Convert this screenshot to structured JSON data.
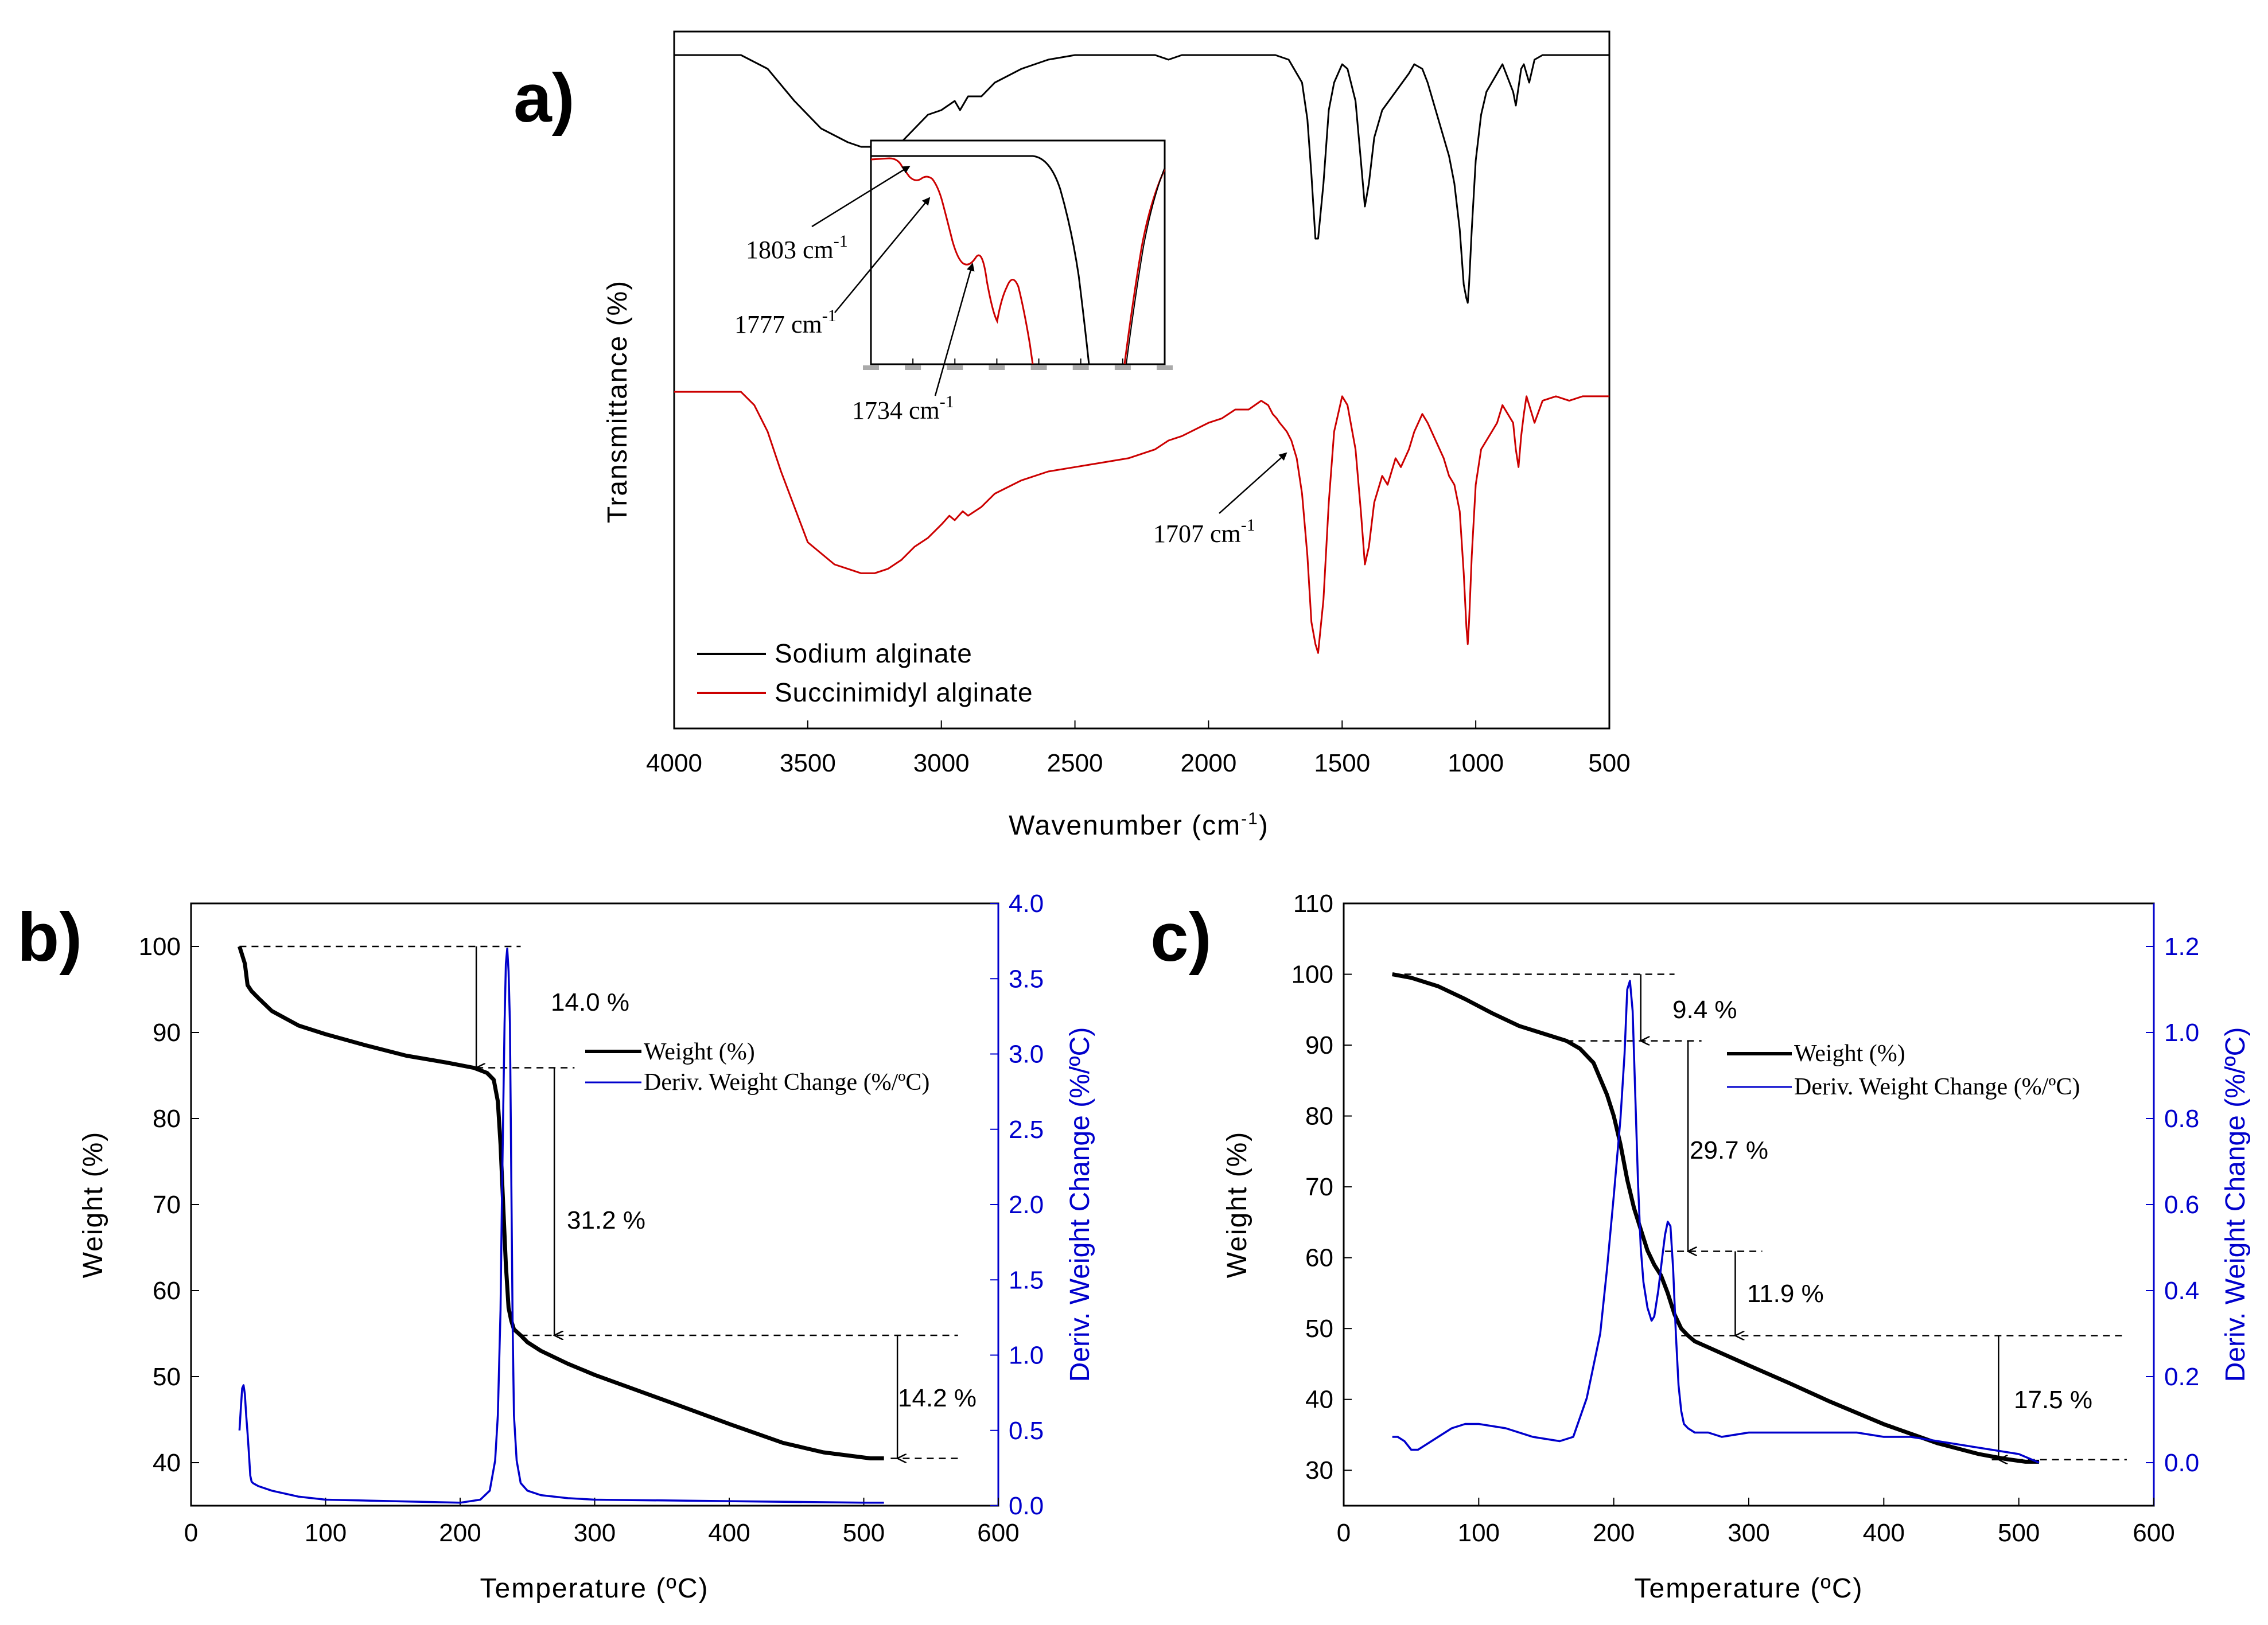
{
  "colors": {
    "black": "#000000",
    "red": "#cc0000",
    "blue": "#0000cc",
    "gray": "#999999"
  },
  "panels": {
    "a": {
      "letter": "a)"
    },
    "b": {
      "letter": "b)"
    },
    "c": {
      "letter": "c)"
    }
  },
  "chart_data": [
    {
      "id": "a",
      "type": "line",
      "title": "",
      "xlabel": "Wavenumber (cm-1)",
      "xlabel_main": "Wavenumber (cm",
      "xlabel_sup": "-1",
      "xlabel_close": ")",
      "ylabel": "Transmittance (%)",
      "xlim": [
        4000,
        500
      ],
      "xreversed": true,
      "xticks": [
        4000,
        3500,
        3000,
        2500,
        2000,
        1500,
        1000,
        500
      ],
      "yticks_shown": false,
      "legend": {
        "position": "bottom-left",
        "entries": [
          "Sodium alginate",
          "Succinimidyl alginate"
        ]
      },
      "series": [
        {
          "name": "Sodium alginate",
          "color": "#000000",
          "baseline": 98,
          "x": [
            4000,
            3750,
            3650,
            3550,
            3450,
            3350,
            3300,
            3250,
            3200,
            3150,
            3100,
            3050,
            3000,
            2950,
            2930,
            2900,
            2850,
            2800,
            2700,
            2600,
            2500,
            2400,
            2300,
            2200,
            2150,
            2100,
            2000,
            1900,
            1850,
            1800,
            1750,
            1700,
            1650,
            1630,
            1615,
            1600,
            1590,
            1570,
            1550,
            1530,
            1500,
            1480,
            1450,
            1430,
            1415,
            1400,
            1380,
            1350,
            1300,
            1250,
            1230,
            1200,
            1180,
            1150,
            1120,
            1100,
            1080,
            1060,
            1045,
            1035,
            1030,
            1025,
            1015,
            1000,
            980,
            960,
            940,
            920,
            900,
            880,
            860,
            850,
            840,
            830,
            820,
            810,
            800,
            780,
            750,
            700,
            650,
            600,
            550,
            500
          ],
          "y": [
            98,
            98,
            95,
            88,
            82,
            79,
            78,
            78,
            78,
            79,
            82,
            85,
            86,
            88,
            86,
            89,
            89,
            92,
            95,
            97,
            98,
            98,
            98,
            98,
            97,
            98,
            98,
            98,
            98,
            98,
            98,
            97,
            92,
            84,
            72,
            58,
            58,
            70,
            86,
            92,
            96,
            95,
            88,
            75,
            65,
            70,
            80,
            86,
            90,
            94,
            96,
            95,
            92,
            86,
            80,
            76,
            70,
            60,
            48,
            45,
            44,
            48,
            60,
            75,
            85,
            90,
            92,
            94,
            96,
            93,
            90,
            87,
            91,
            95,
            96,
            94,
            92,
            97,
            98,
            98,
            98,
            98,
            98,
            98
          ]
        },
        {
          "name": "Succinimidyl alginate",
          "color": "#cc0000",
          "baseline": 98,
          "x": [
            4000,
            3750,
            3700,
            3650,
            3600,
            3500,
            3400,
            3350,
            3300,
            3250,
            3200,
            3150,
            3100,
            3050,
            3000,
            2970,
            2950,
            2920,
            2900,
            2850,
            2800,
            2700,
            2600,
            2500,
            2400,
            2300,
            2200,
            2150,
            2100,
            2000,
            1950,
            1900,
            1850,
            1803,
            1777,
            1760,
            1745,
            1734,
            1720,
            1707,
            1690,
            1670,
            1650,
            1630,
            1615,
            1600,
            1590,
            1570,
            1550,
            1530,
            1500,
            1480,
            1450,
            1430,
            1415,
            1400,
            1380,
            1350,
            1330,
            1300,
            1280,
            1250,
            1230,
            1200,
            1180,
            1150,
            1120,
            1100,
            1080,
            1060,
            1045,
            1035,
            1030,
            1025,
            1015,
            1000,
            980,
            960,
            940,
            920,
            900,
            880,
            860,
            850,
            840,
            830,
            820,
            810,
            800,
            780,
            750,
            700,
            650,
            600,
            550,
            500
          ],
          "y": [
            97,
            97,
            94,
            88,
            79,
            63,
            58,
            57,
            56,
            56,
            57,
            59,
            62,
            64,
            67,
            69,
            68,
            70,
            69,
            71,
            74,
            77,
            79,
            80,
            81,
            82,
            84,
            86,
            87,
            90,
            91,
            93,
            93,
            95,
            94,
            92,
            91,
            90,
            89,
            88,
            86,
            82,
            74,
            60,
            45,
            40,
            38,
            50,
            72,
            88,
            96,
            94,
            84,
            70,
            58,
            62,
            72,
            78,
            76,
            82,
            80,
            84,
            88,
            92,
            90,
            86,
            82,
            78,
            76,
            70,
            56,
            44,
            40,
            45,
            60,
            76,
            84,
            86,
            88,
            90,
            94,
            92,
            90,
            84,
            80,
            87,
            92,
            96,
            94,
            90,
            95,
            96,
            95,
            96,
            96,
            96
          ],
          "annotations": [
            {
              "text_main": "1707 cm",
              "text_sup": "-1",
              "x": 1707
            }
          ]
        }
      ],
      "inset": {
        "annotations": [
          {
            "text_main": "1803 cm",
            "text_sup": "-1",
            "x": 1803
          },
          {
            "text_main": "1777 cm",
            "text_sup": "-1",
            "x": 1777
          },
          {
            "text_main": "1734 cm",
            "text_sup": "-1",
            "x": 1734
          }
        ]
      }
    },
    {
      "id": "b",
      "type": "line",
      "xlabel": "Temperature (ºC)",
      "ylabel": "Weight (%)",
      "y2label": "Deriv. Weight Change (%/ºC)",
      "xlim": [
        0,
        600
      ],
      "ylim": [
        35,
        105
      ],
      "y2lim": [
        0,
        4.0
      ],
      "xticks": [
        0,
        100,
        200,
        300,
        400,
        500,
        600
      ],
      "yticks": [
        40,
        50,
        60,
        70,
        80,
        90,
        100
      ],
      "y2ticks": [
        0.0,
        0.5,
        1.0,
        1.5,
        2.0,
        2.5,
        3.0,
        3.5,
        4.0
      ],
      "y2tick_labels": [
        "0.0",
        "0.5",
        "1.0",
        "1.5",
        "2.0",
        "2.5",
        "3.0",
        "3.5",
        "4.0"
      ],
      "legend": {
        "position": "top-right",
        "entries": [
          "Weight (%)",
          "Deriv. Weight Change (%/ºC)"
        ]
      },
      "series": [
        {
          "name": "Weight (%)",
          "axis": "left",
          "color": "#000000",
          "x": [
            36,
            38,
            40,
            42,
            45,
            50,
            60,
            80,
            100,
            130,
            160,
            190,
            210,
            220,
            225,
            228,
            230,
            232,
            234,
            236,
            238,
            240,
            245,
            250,
            260,
            280,
            300,
            330,
            360,
            400,
            440,
            470,
            490,
            505,
            515
          ],
          "y": [
            100,
            99,
            98,
            95.5,
            94.8,
            94,
            92.5,
            90.8,
            89.8,
            88.5,
            87.3,
            86.5,
            85.9,
            85.3,
            84.5,
            82,
            77,
            70,
            63,
            58,
            56.5,
            55.5,
            54.8,
            54,
            53,
            51.5,
            50.2,
            48.5,
            46.8,
            44.5,
            42.3,
            41.2,
            40.8,
            40.5,
            40.5
          ]
        },
        {
          "name": "Deriv. Weight Change (%/ºC)",
          "axis": "right",
          "color": "#0000cc",
          "x": [
            36,
            37,
            38,
            39,
            40,
            41,
            42,
            43,
            44,
            45,
            46,
            48,
            50,
            60,
            80,
            100,
            150,
            200,
            215,
            222,
            226,
            228,
            230,
            231,
            232,
            233,
            234,
            235,
            236,
            237,
            238,
            239,
            240,
            242,
            245,
            250,
            260,
            280,
            300,
            400,
            500,
            515
          ],
          "y": [
            0.5,
            0.65,
            0.78,
            0.8,
            0.74,
            0.6,
            0.48,
            0.35,
            0.2,
            0.16,
            0.15,
            0.14,
            0.13,
            0.1,
            0.06,
            0.04,
            0.03,
            0.02,
            0.04,
            0.1,
            0.3,
            0.6,
            1.3,
            2.0,
            2.6,
            3.2,
            3.6,
            3.7,
            3.55,
            3.2,
            2.2,
            1.2,
            0.6,
            0.3,
            0.15,
            0.1,
            0.07,
            0.05,
            0.04,
            0.03,
            0.02,
            0.02
          ]
        }
      ],
      "annotations": [
        {
          "text": "14.0 %"
        },
        {
          "text": "31.2 %"
        },
        {
          "text": "14.2 %"
        }
      ],
      "steps": [
        {
          "from": 100,
          "to": 85.9,
          "x_arrow": 212,
          "x_start": 36,
          "x_end": 245
        },
        {
          "from": 85.9,
          "to": 54.8,
          "x_arrow": 270,
          "x_start": 212,
          "x_end": 285
        },
        {
          "from": 54.8,
          "to": 40.5,
          "x_arrow": 525,
          "x_start": 245,
          "x_end": 570
        }
      ]
    },
    {
      "id": "c",
      "type": "line",
      "xlabel": "Temperature (ºC)",
      "ylabel": "Weight (%)",
      "y2label": "Deriv. Weight Change (%/ºC)",
      "xlim": [
        0,
        600
      ],
      "ylim": [
        25,
        110
      ],
      "y2lim": [
        -0.1,
        1.3
      ],
      "xticks": [
        0,
        100,
        200,
        300,
        400,
        500,
        600
      ],
      "yticks": [
        30,
        40,
        50,
        60,
        70,
        80,
        90,
        100,
        110
      ],
      "y2ticks": [
        0.0,
        0.2,
        0.4,
        0.6,
        0.8,
        1.0,
        1.2
      ],
      "y2tick_labels": [
        "0.0",
        "0.2",
        "0.4",
        "0.6",
        "0.8",
        "1.0",
        "1.2"
      ],
      "legend": {
        "position": "top-right",
        "entries": [
          "Weight (%)",
          "Deriv. Weight Change (%/ºC)"
        ]
      },
      "series": [
        {
          "name": "Weight (%)",
          "axis": "left",
          "color": "#000000",
          "x": [
            36,
            50,
            70,
            90,
            110,
            130,
            150,
            165,
            175,
            185,
            195,
            200,
            205,
            210,
            215,
            220,
            225,
            230,
            235,
            240,
            245,
            250,
            255,
            260,
            280,
            300,
            330,
            360,
            400,
            440,
            470,
            490,
            505,
            515
          ],
          "y": [
            100,
            99.5,
            98.3,
            96.5,
            94.5,
            92.7,
            91.5,
            90.6,
            89.5,
            87.5,
            83,
            80,
            76,
            71,
            67,
            64,
            61,
            59,
            57.5,
            55,
            52,
            50,
            49,
            48.2,
            46.5,
            44.8,
            42.3,
            39.7,
            36.5,
            33.8,
            32.3,
            31.6,
            31.2,
            31.2
          ]
        },
        {
          "name": "Deriv. Weight Change (%/ºC)",
          "axis": "right",
          "color": "#0000cc",
          "x": [
            36,
            40,
            45,
            50,
            55,
            60,
            70,
            80,
            90,
            100,
            120,
            140,
            160,
            170,
            180,
            190,
            195,
            200,
            205,
            208,
            210,
            212,
            214,
            216,
            218,
            220,
            222,
            225,
            228,
            230,
            233,
            236,
            238,
            240,
            242,
            244,
            246,
            248,
            250,
            252,
            255,
            260,
            270,
            280,
            300,
            320,
            340,
            360,
            380,
            400,
            420,
            440,
            460,
            480,
            500,
            515
          ],
          "y": [
            0.06,
            0.06,
            0.05,
            0.03,
            0.03,
            0.04,
            0.06,
            0.08,
            0.09,
            0.09,
            0.08,
            0.06,
            0.05,
            0.06,
            0.15,
            0.3,
            0.45,
            0.62,
            0.8,
            0.95,
            1.1,
            1.12,
            1.05,
            0.85,
            0.65,
            0.5,
            0.42,
            0.36,
            0.33,
            0.34,
            0.4,
            0.48,
            0.53,
            0.56,
            0.55,
            0.45,
            0.3,
            0.18,
            0.12,
            0.09,
            0.08,
            0.07,
            0.07,
            0.06,
            0.07,
            0.07,
            0.07,
            0.07,
            0.07,
            0.06,
            0.06,
            0.05,
            0.04,
            0.03,
            0.02,
            0.0
          ]
        }
      ],
      "annotations": [
        {
          "text": "9.4 %"
        },
        {
          "text": "29.7 %"
        },
        {
          "text": "11.9 %"
        },
        {
          "text": "17.5 %"
        }
      ],
      "steps": [
        {
          "from": 100,
          "to": 90.6,
          "x_arrow": 220,
          "x_start": 36,
          "x_end": 245
        },
        {
          "from": 90.6,
          "to": 60.9,
          "x_arrow": 255,
          "x_start": 165,
          "x_end": 265
        },
        {
          "from": 60.9,
          "to": 49.0,
          "x_arrow": 290,
          "x_start": 238,
          "x_end": 310
        },
        {
          "from": 49.0,
          "to": 31.5,
          "x_arrow": 485,
          "x_start": 250,
          "x_end": 580
        }
      ]
    }
  ]
}
